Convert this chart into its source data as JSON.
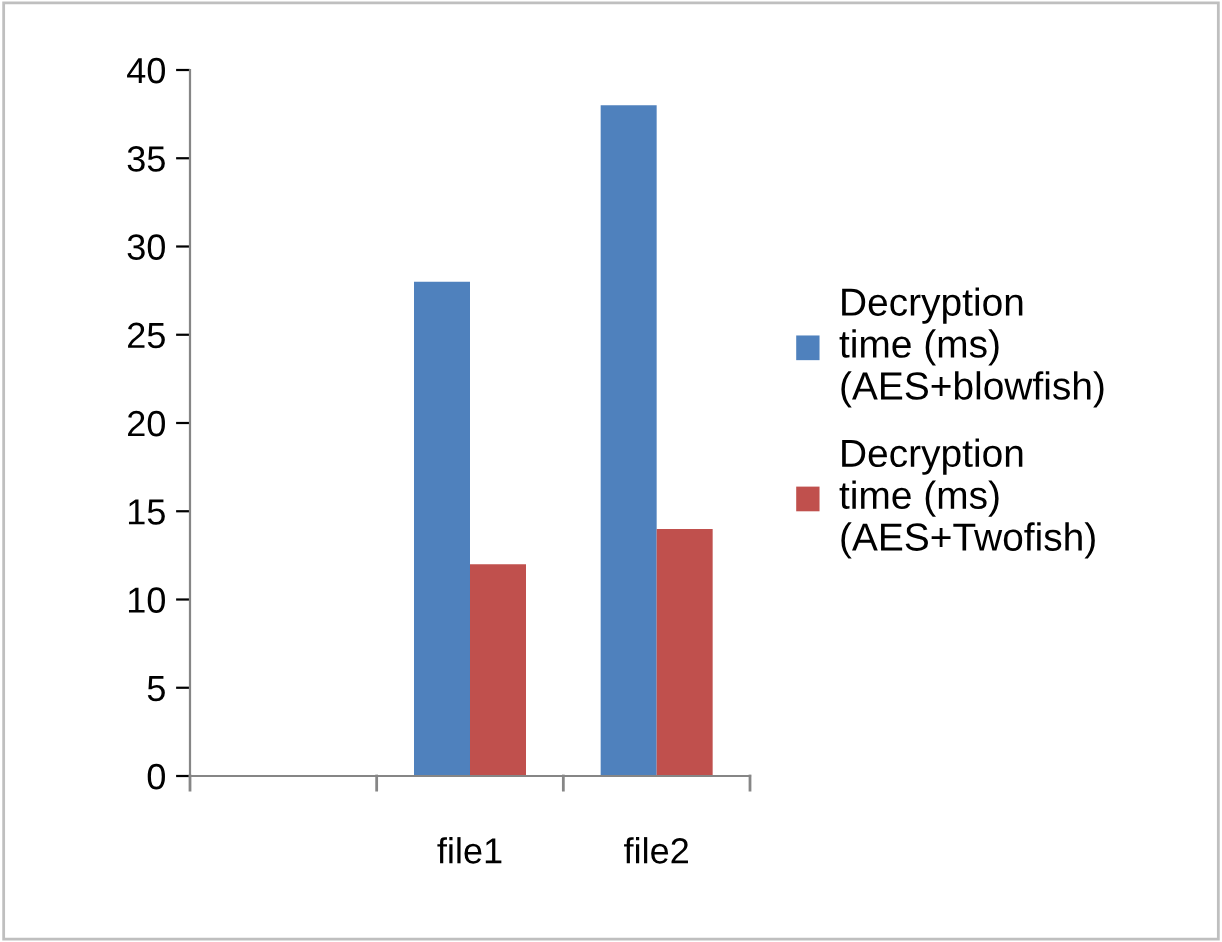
{
  "chart_data": {
    "type": "bar",
    "categories": [
      null,
      "file1",
      "file2"
    ],
    "series": [
      {
        "name": "Decryption\ntime (ms)\n(AES+blowfish)",
        "color": "#4f81bd",
        "values": [
          null,
          28,
          38
        ]
      },
      {
        "name": "Decryption\ntime (ms)\n(AES+Twofish)",
        "color": "#c0504d",
        "values": [
          null,
          12,
          14
        ]
      }
    ],
    "ylim": [
      0,
      40
    ],
    "yticks": [
      0,
      5,
      10,
      15,
      20,
      25,
      30,
      35,
      40
    ],
    "grid": false,
    "legend": "right"
  }
}
